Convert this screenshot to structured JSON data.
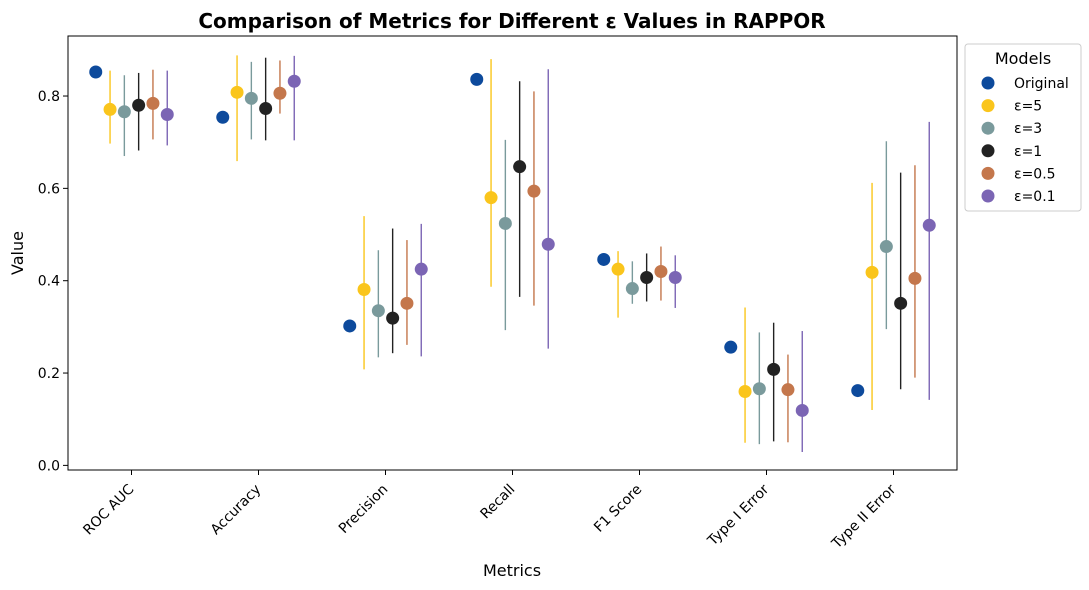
{
  "chart_data": {
    "type": "scatter",
    "title": "Comparison of Metrics for Different ε Values in RAPPOR",
    "xlabel": "Metrics",
    "ylabel": "Value",
    "ylim": [
      -0.01,
      0.93
    ],
    "yticks": [
      "0.0",
      "0.2",
      "0.4",
      "0.6",
      "0.8"
    ],
    "ytick_values": [
      0.0,
      0.2,
      0.4,
      0.6,
      0.8
    ],
    "categories": [
      "ROC AUC",
      "Accuracy",
      "Precision",
      "Recall",
      "F1 Score",
      "Type I Error",
      "Type II Error"
    ],
    "grid": false,
    "legend": {
      "title": "Models",
      "placement": "outside-top-right"
    },
    "series": [
      {
        "name": "Original",
        "color": "#0d4a9c",
        "values": [
          0.852,
          0.754,
          0.302,
          0.836,
          0.446,
          0.256,
          0.162
        ],
        "lower": [
          null,
          null,
          null,
          null,
          null,
          null,
          null
        ],
        "upper": [
          null,
          null,
          null,
          null,
          null,
          null,
          null
        ]
      },
      {
        "name": "ε=5",
        "color": "#fac51c",
        "values": [
          0.771,
          0.808,
          0.381,
          0.58,
          0.425,
          0.16,
          0.418
        ],
        "lower": [
          0.697,
          0.659,
          0.208,
          0.387,
          0.32,
          0.049,
          0.12
        ],
        "upper": [
          0.855,
          0.888,
          0.54,
          0.88,
          0.464,
          0.342,
          0.612
        ]
      },
      {
        "name": "ε=3",
        "color": "#7a9a9c",
        "values": [
          0.766,
          0.795,
          0.335,
          0.524,
          0.383,
          0.166,
          0.474
        ],
        "lower": [
          0.67,
          0.706,
          0.234,
          0.293,
          0.35,
          0.046,
          0.295
        ],
        "upper": [
          0.845,
          0.874,
          0.466,
          0.705,
          0.442,
          0.288,
          0.702
        ]
      },
      {
        "name": "ε=1",
        "color": "#222222",
        "values": [
          0.78,
          0.773,
          0.319,
          0.647,
          0.407,
          0.208,
          0.351
        ],
        "lower": [
          0.682,
          0.704,
          0.243,
          0.365,
          0.355,
          0.052,
          0.165
        ],
        "upper": [
          0.85,
          0.883,
          0.513,
          0.832,
          0.459,
          0.309,
          0.634
        ]
      },
      {
        "name": "ε=0.5",
        "color": "#c4774c",
        "values": [
          0.784,
          0.806,
          0.351,
          0.594,
          0.42,
          0.164,
          0.405
        ],
        "lower": [
          0.706,
          0.762,
          0.261,
          0.346,
          0.357,
          0.05,
          0.19
        ],
        "upper": [
          0.857,
          0.877,
          0.488,
          0.81,
          0.474,
          0.24,
          0.65
        ]
      },
      {
        "name": "ε=0.1",
        "color": "#7b65b4",
        "values": [
          0.76,
          0.832,
          0.425,
          0.479,
          0.407,
          0.119,
          0.52
        ],
        "lower": [
          0.693,
          0.704,
          0.236,
          0.253,
          0.341,
          0.029,
          0.142
        ],
        "upper": [
          0.855,
          0.887,
          0.523,
          0.858,
          0.455,
          0.291,
          0.744
        ]
      }
    ]
  }
}
